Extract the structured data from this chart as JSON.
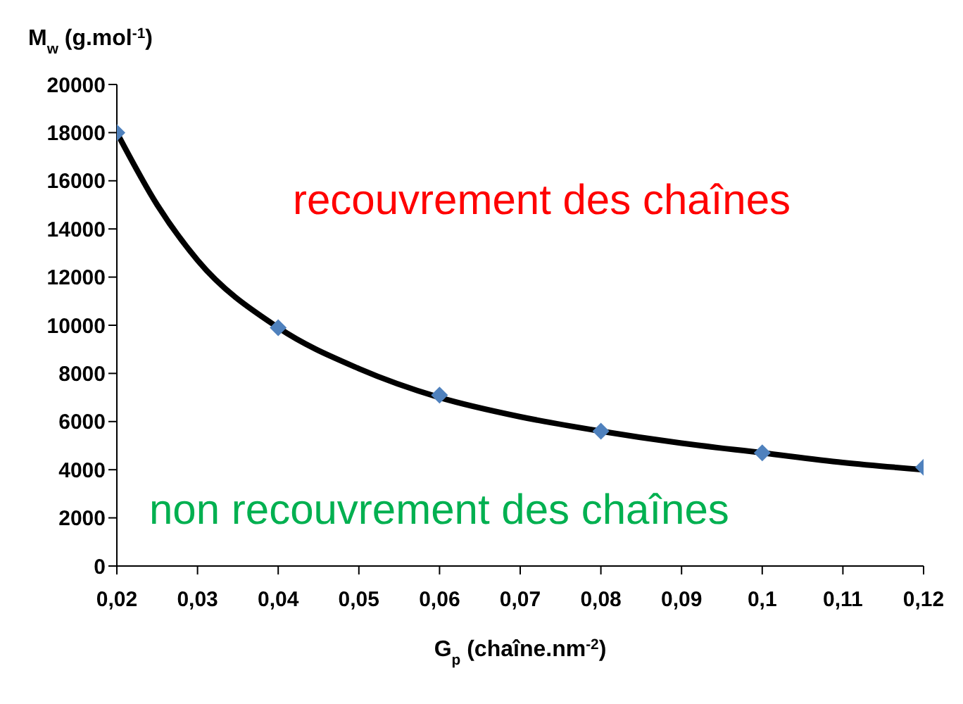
{
  "chart_data": {
    "type": "scatter",
    "xlabel": "G$_{p}$ (chaîne.nm$^{-2}$)",
    "ylabel": "M$_{w}$ (g.mol$^{-1}$)",
    "annotations": [
      "recouvrement des chaînes",
      "non recouvrement des chaînes"
    ],
    "xlim": [
      0.02,
      0.12
    ],
    "xticks": [
      {
        "value": 0.02,
        "label": "0,02"
      },
      {
        "value": 0.03,
        "label": "0,03"
      },
      {
        "value": 0.04,
        "label": "0,04"
      },
      {
        "value": 0.05,
        "label": "0,05"
      },
      {
        "value": 0.06,
        "label": "0,06"
      },
      {
        "value": 0.07,
        "label": "0,07"
      },
      {
        "value": 0.08,
        "label": "0,08"
      },
      {
        "value": 0.09,
        "label": "0,09"
      },
      {
        "value": 0.1,
        "label": "0,1"
      },
      {
        "value": 0.11,
        "label": "0,11"
      },
      {
        "value": 0.12,
        "label": "0,12"
      }
    ],
    "ylim": [
      0,
      20000
    ],
    "yticks": [
      0,
      2000,
      4000,
      6000,
      8000,
      10000,
      12000,
      14000,
      16000,
      18000,
      20000
    ],
    "series": [
      {
        "color": "#4f81bd",
        "marker": "diamond",
        "x": [
          0.02,
          0.04,
          0.06,
          0.08,
          0.1,
          0.12
        ],
        "values": [
          18000,
          9900,
          7100,
          5600,
          4700,
          4100
        ]
      },
      {
        "type": "line",
        "color": "#000000",
        "marker": "none",
        "x": [
          0.02,
          0.025,
          0.03,
          0.04,
          0.05,
          0.06,
          0.07,
          0.08,
          0.09,
          0.1,
          0.11,
          0.12
        ],
        "values": [
          18000,
          15000,
          12700,
          9900,
          8200,
          7000,
          6200,
          5600,
          5100,
          4700,
          4300,
          4000
        ]
      }
    ]
  }
}
